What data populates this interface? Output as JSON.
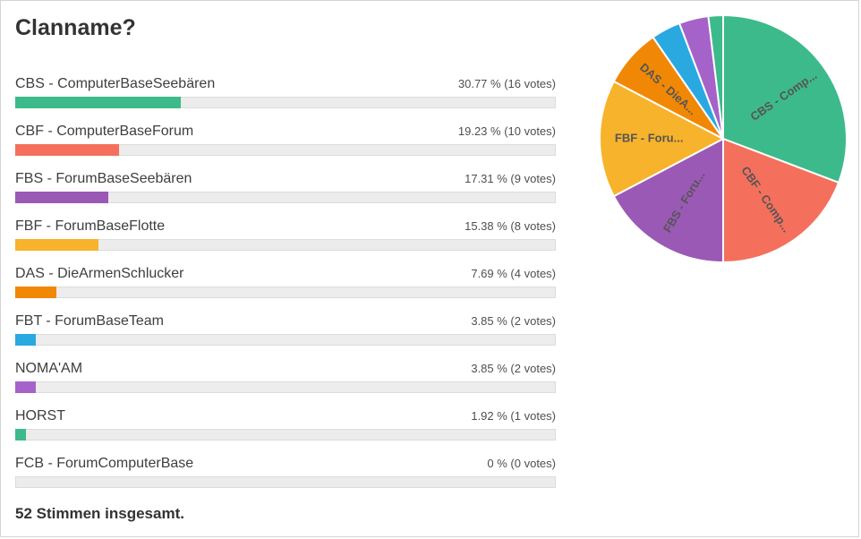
{
  "poll": {
    "title": "Clanname?",
    "total_label": "52 Stimmen insgesamt.",
    "options": [
      {
        "label": "CBS - ComputerBaseSeebären",
        "stats": "30.77 % (16 votes)",
        "percent": 30.77,
        "votes": 16,
        "color": "#3cba8b",
        "pie_label": "CBS - Comp..."
      },
      {
        "label": "CBF - ComputerBaseForum",
        "stats": "19.23 % (10 votes)",
        "percent": 19.23,
        "votes": 10,
        "color": "#f4705c",
        "pie_label": "CBF - Comp..."
      },
      {
        "label": "FBS - ForumBaseSeebären",
        "stats": "17.31 % (9 votes)",
        "percent": 17.31,
        "votes": 9,
        "color": "#9b59b6",
        "pie_label": "FBS - Foru..."
      },
      {
        "label": "FBF - ForumBaseFlotte",
        "stats": "15.38 % (8 votes)",
        "percent": 15.38,
        "votes": 8,
        "color": "#f7b32b",
        "pie_label": "FBF - Foru..."
      },
      {
        "label": "DAS - DieArmenSchlucker",
        "stats": "7.69 % (4 votes)",
        "percent": 7.69,
        "votes": 4,
        "color": "#f18805",
        "pie_label": "DAS - DieA..."
      },
      {
        "label": "FBT - ForumBaseTeam",
        "stats": "3.85 % (2 votes)",
        "percent": 3.85,
        "votes": 2,
        "color": "#29a9e0",
        "pie_label": ""
      },
      {
        "label": "NOMA'AM",
        "stats": "3.85 % (2 votes)",
        "percent": 3.85,
        "votes": 2,
        "color": "#a563c9",
        "pie_label": ""
      },
      {
        "label": "HORST",
        "stats": "1.92 % (1 votes)",
        "percent": 1.92,
        "votes": 1,
        "color": "#3cba8b",
        "pie_label": ""
      },
      {
        "label": "FCB - ForumComputerBase",
        "stats": "0 % (0 votes)",
        "percent": 0,
        "votes": 0,
        "color": "#3cba8b",
        "pie_label": ""
      }
    ]
  },
  "chart_data": {
    "type": "pie",
    "title": "Clanname?",
    "categories": [
      "CBS - ComputerBaseSeebären",
      "CBF - ComputerBaseForum",
      "FBS - ForumBaseSeebären",
      "FBF - ForumBaseFlotte",
      "DAS - DieArmenSchlucker",
      "FBT - ForumBaseTeam",
      "NOMA'AM",
      "HORST",
      "FCB - ForumComputerBase"
    ],
    "values": [
      30.77,
      19.23,
      17.31,
      15.38,
      7.69,
      3.85,
      3.85,
      1.92,
      0
    ],
    "votes": [
      16,
      10,
      9,
      8,
      4,
      2,
      2,
      1,
      0
    ],
    "total_votes": 52,
    "colors": [
      "#3cba8b",
      "#f4705c",
      "#9b59b6",
      "#f7b32b",
      "#f18805",
      "#29a9e0",
      "#a563c9",
      "#3cba8b",
      "#3cba8b"
    ],
    "slice_labels": [
      "CBS - Comp...",
      "CBF - Comp...",
      "FBS - Foru...",
      "FBF - Foru...",
      "DAS - DieA...",
      "",
      "",
      "",
      ""
    ],
    "start_angle_deg": -90,
    "direction": "clockwise",
    "legend_position": "none",
    "companion_bars": true
  }
}
